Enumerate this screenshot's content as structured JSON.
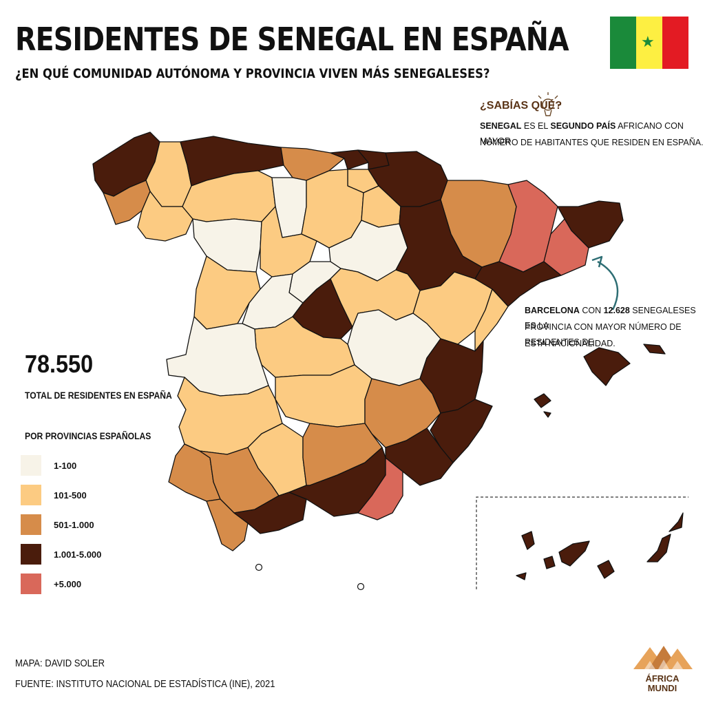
{
  "header": {
    "title": "RESIDENTES DE SENEGAL EN ESPAÑA",
    "subtitle": "¿EN QUÉ COMUNIDAD AUTÓNOMA Y PROVINCIA VIVEN MÁS SENEGALESES?"
  },
  "flag": {
    "colors": [
      "#1a8a3a",
      "#fdef42",
      "#e31b23"
    ],
    "star_color": "#1a8a3a"
  },
  "fact_box": {
    "heading": "¿SABÍAS QUÉ?",
    "line1_bold1": "SENEGAL",
    "line1_text1": " ES EL ",
    "line1_bold2": "SEGUNDO PAÍS",
    "line1_text2": " AFRICANO CON MAYOR",
    "line2": "NÚMERO DE HABITANTES QUE RESIDEN EN ESPAÑA."
  },
  "callout": {
    "bold1": "BARCELONA",
    "text1": " CON ",
    "bold2": "12.628",
    "text2": " SENEGALESES ES LA",
    "line2": "PROVINCIA CON MAYOR NÚMERO DE RESIDENTES DE",
    "line3": "ESTA NACIONALIDAD."
  },
  "total": {
    "value": "78.550",
    "label": "TOTAL DE RESIDENTES EN ESPAÑA"
  },
  "legend": {
    "title": "POR PROVINCIAS ESPAÑOLAS",
    "items": [
      {
        "label": "1-100",
        "color": "#f7f3e8"
      },
      {
        "label": "101-500",
        "color": "#fccb82"
      },
      {
        "label": "501-1.000",
        "color": "#d68c4a"
      },
      {
        "label": "1.001-5.000",
        "color": "#4a1c0c"
      },
      {
        "label": "+5.000",
        "color": "#d9685a"
      }
    ]
  },
  "credits": {
    "map": "MAPA: DAVID SOLER",
    "source": "FUENTE: INSTITUTO NACIONAL DE ESTADÍSTICA (INE), 2021"
  },
  "logo": {
    "line1": "ÁFRICA",
    "line2": "MUNDI",
    "colors": [
      "#e7a35a",
      "#c57b3b",
      "#5a3417"
    ]
  }
}
